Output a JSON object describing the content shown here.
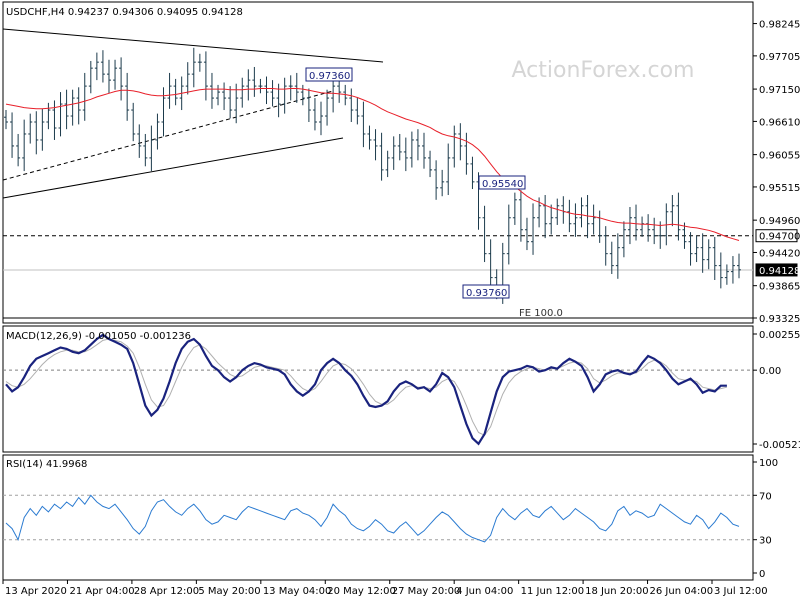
{
  "header": {
    "symbol_ohlc": "USDCHF,H4  0.94237 0.94306 0.94095 0.94128",
    "watermark": "ActionForex.com"
  },
  "chart_data": [
    {
      "type": "line",
      "name": "price",
      "ylim": [
        0.93325,
        0.98505
      ],
      "yticks": [
        "0.98245",
        "0.97705",
        "0.97150",
        "0.96610",
        "0.96055",
        "0.95515",
        "0.94960",
        "0.94420",
        "0.93865",
        "0.93325"
      ],
      "price_labels": [
        "0.94700",
        "0.94128"
      ],
      "annotations": [
        {
          "text": "0.97360",
          "value": 0.9736
        },
        {
          "text": "0.95540",
          "value": 0.9554
        },
        {
          "text": "0.93760",
          "value": 0.9376
        },
        {
          "text": "FE 100.0",
          "value": 0.934
        }
      ],
      "close": [
        0.966,
        0.962,
        0.96,
        0.964,
        0.966,
        0.963,
        0.966,
        0.968,
        0.965,
        0.969,
        0.967,
        0.97,
        0.968,
        0.972,
        0.975,
        0.976,
        0.974,
        0.973,
        0.975,
        0.972,
        0.968,
        0.964,
        0.962,
        0.96,
        0.963,
        0.966,
        0.97,
        0.972,
        0.97,
        0.972,
        0.974,
        0.976,
        0.976,
        0.972,
        0.97,
        0.971,
        0.97,
        0.968,
        0.97,
        0.972,
        0.973,
        0.972,
        0.972,
        0.971,
        0.97,
        0.969,
        0.972,
        0.972,
        0.971,
        0.97,
        0.968,
        0.966,
        0.967,
        0.97,
        0.972,
        0.971,
        0.97,
        0.968,
        0.967,
        0.964,
        0.963,
        0.962,
        0.958,
        0.96,
        0.962,
        0.961,
        0.96,
        0.963,
        0.962,
        0.96,
        0.958,
        0.955,
        0.956,
        0.96,
        0.964,
        0.962,
        0.959,
        0.956,
        0.95,
        0.944,
        0.94,
        0.938,
        0.944,
        0.95,
        0.953,
        0.948,
        0.946,
        0.95,
        0.952,
        0.949,
        0.95,
        0.952,
        0.951,
        0.949,
        0.95,
        0.952,
        0.949,
        0.95,
        0.947,
        0.944,
        0.942,
        0.945,
        0.948,
        0.95,
        0.948,
        0.949,
        0.948,
        0.947,
        0.947,
        0.951,
        0.952,
        0.948,
        0.946,
        0.944,
        0.945,
        0.943,
        0.945,
        0.942,
        0.94,
        0.941,
        0.942,
        0.9413
      ],
      "ma": [
        0.969,
        0.9688,
        0.9686,
        0.9684,
        0.9683,
        0.9682,
        0.9682,
        0.9683,
        0.9684,
        0.9686,
        0.9688,
        0.969,
        0.9692,
        0.9695,
        0.9698,
        0.9702,
        0.9705,
        0.9708,
        0.9711,
        0.9713,
        0.9713,
        0.9712,
        0.971,
        0.9707,
        0.9705,
        0.9704,
        0.9704,
        0.9705,
        0.9706,
        0.9708,
        0.971,
        0.9712,
        0.9714,
        0.9715,
        0.9715,
        0.9715,
        0.9715,
        0.9714,
        0.9714,
        0.9714,
        0.9715,
        0.9715,
        0.9716,
        0.9716,
        0.9716,
        0.9715,
        0.9715,
        0.9716,
        0.9716,
        0.9715,
        0.9713,
        0.9711,
        0.9709,
        0.9708,
        0.9708,
        0.9707,
        0.9706,
        0.9704,
        0.9701,
        0.9697,
        0.9693,
        0.9688,
        0.9682,
        0.9677,
        0.9673,
        0.9669,
        0.9665,
        0.9662,
        0.9659,
        0.9655,
        0.9651,
        0.9645,
        0.964,
        0.9637,
        0.9635,
        0.9632,
        0.9628,
        0.9622,
        0.9614,
        0.9603,
        0.959,
        0.9577,
        0.9566,
        0.9558,
        0.9552,
        0.9544,
        0.9536,
        0.953,
        0.9526,
        0.9521,
        0.9517,
        0.9514,
        0.9511,
        0.9508,
        0.9506,
        0.9505,
        0.9503,
        0.9502,
        0.95,
        0.9497,
        0.9494,
        0.9492,
        0.9491,
        0.9491,
        0.949,
        0.9489,
        0.9489,
        0.9488,
        0.9487,
        0.9488,
        0.9489,
        0.9488,
        0.9486,
        0.9484,
        0.9483,
        0.9481,
        0.9479,
        0.9476,
        0.9472,
        0.9468,
        0.9465,
        0.9462
      ]
    },
    {
      "type": "line",
      "name": "MACD",
      "title": "MACD(12,26,9) -0.001050 -0.001236",
      "ylim": [
        -0.005212,
        0.002553
      ],
      "yticks": [
        "0.002553",
        "0.00",
        "-0.005212"
      ],
      "macd": [
        -0.001,
        -0.0015,
        -0.0012,
        -0.0005,
        0.0003,
        0.0008,
        0.001,
        0.0012,
        0.0014,
        0.0016,
        0.0015,
        0.0013,
        0.0012,
        0.0014,
        0.0018,
        0.0022,
        0.0025,
        0.0022,
        0.002,
        0.0018,
        0.0015,
        0.0005,
        -0.001,
        -0.0025,
        -0.0032,
        -0.0028,
        -0.002,
        -0.0008,
        0.0005,
        0.0015,
        0.002,
        0.0022,
        0.0018,
        0.001,
        0.0003,
        0.0,
        -0.0005,
        -0.0008,
        -0.0005,
        0.0,
        0.0003,
        0.0005,
        0.0004,
        0.0002,
        0.0001,
        0.0,
        -0.0003,
        -0.001,
        -0.0015,
        -0.0018,
        -0.0015,
        -0.001,
        0.0,
        0.0005,
        0.0008,
        0.0005,
        0.0,
        -0.0004,
        -0.001,
        -0.0018,
        -0.0025,
        -0.0026,
        -0.0025,
        -0.0022,
        -0.0015,
        -0.001,
        -0.0008,
        -0.001,
        -0.0013,
        -0.0012,
        -0.0015,
        -0.001,
        -0.0002,
        -0.0005,
        -0.0012,
        -0.0025,
        -0.0038,
        -0.0048,
        -0.0052,
        -0.0045,
        -0.003,
        -0.0015,
        -0.0005,
        -0.0001,
        0.0,
        0.0001,
        0.0003,
        0.0002,
        -0.0001,
        0.0,
        0.0002,
        0.0001,
        0.0005,
        0.0008,
        0.0006,
        0.0003,
        -0.0005,
        -0.0015,
        -0.001,
        -0.0003,
        -0.0001,
        0.0,
        -0.0002,
        -0.0003,
        -0.0001,
        0.0005,
        0.001,
        0.0008,
        0.0005,
        0.0,
        -0.0006,
        -0.001,
        -0.0008,
        -0.0006,
        -0.001,
        -0.0016,
        -0.0014,
        -0.0015,
        -0.0011,
        -0.0011
      ],
      "signal": [
        -0.0008,
        -0.0011,
        -0.0012,
        -0.001,
        -0.0006,
        -0.0001,
        0.0004,
        0.0008,
        0.0011,
        0.0013,
        0.0014,
        0.0014,
        0.0013,
        0.0013,
        0.0015,
        0.0018,
        0.0021,
        0.0022,
        0.0021,
        0.002,
        0.0017,
        0.0012,
        0.0002,
        -0.001,
        -0.0021,
        -0.0026,
        -0.0025,
        -0.0018,
        -0.0008,
        0.0002,
        0.001,
        0.0016,
        0.0018,
        0.0015,
        0.001,
        0.0005,
        0.0001,
        -0.0003,
        -0.0005,
        -0.0004,
        -0.0001,
        0.0002,
        0.0003,
        0.0003,
        0.0002,
        0.0001,
        0.0,
        -0.0004,
        -0.0009,
        -0.0013,
        -0.0015,
        -0.0013,
        -0.0008,
        -0.0002,
        0.0003,
        0.0005,
        0.0004,
        0.0001,
        -0.0004,
        -0.001,
        -0.0017,
        -0.0022,
        -0.0024,
        -0.0024,
        -0.0021,
        -0.0016,
        -0.0012,
        -0.0011,
        -0.0012,
        -0.0012,
        -0.0013,
        -0.0012,
        -0.0008,
        -0.0006,
        -0.0008,
        -0.0015,
        -0.0025,
        -0.0036,
        -0.0044,
        -0.0046,
        -0.004,
        -0.0028,
        -0.0017,
        -0.0009,
        -0.0004,
        -0.0001,
        0.0001,
        0.0002,
        0.0001,
        0.0,
        0.0001,
        0.0001,
        0.0003,
        0.0005,
        0.0006,
        0.0005,
        0.0001,
        -0.0006,
        -0.0009,
        -0.0007,
        -0.0004,
        -0.0002,
        -0.0002,
        -0.0002,
        -0.0002,
        0.0001,
        0.0005,
        0.0007,
        0.0006,
        0.0003,
        -0.0002,
        -0.0006,
        -0.0007,
        -0.0007,
        -0.0008,
        -0.0012,
        -0.0013,
        -0.0014,
        -0.0013,
        -0.0012
      ]
    },
    {
      "type": "line",
      "name": "RSI",
      "title": "RSI(14) 41.9968",
      "ylim": [
        0,
        100
      ],
      "yticks": [
        "100",
        "70",
        "30",
        "0"
      ],
      "levels": [
        70,
        30
      ],
      "rsi": [
        45,
        40,
        30,
        50,
        58,
        52,
        60,
        55,
        62,
        58,
        64,
        60,
        68,
        62,
        70,
        64,
        60,
        58,
        62,
        55,
        48,
        40,
        35,
        42,
        56,
        64,
        66,
        60,
        55,
        52,
        58,
        62,
        56,
        48,
        44,
        46,
        52,
        50,
        48,
        55,
        60,
        58,
        56,
        54,
        52,
        50,
        48,
        56,
        58,
        54,
        52,
        48,
        42,
        50,
        62,
        56,
        52,
        44,
        40,
        38,
        42,
        48,
        44,
        38,
        36,
        42,
        46,
        40,
        34,
        38,
        44,
        50,
        55,
        52,
        46,
        40,
        35,
        32,
        30,
        28,
        34,
        50,
        58,
        52,
        48,
        54,
        58,
        52,
        50,
        56,
        60,
        54,
        48,
        52,
        58,
        54,
        50,
        46,
        40,
        38,
        44,
        56,
        60,
        52,
        56,
        54,
        50,
        52,
        62,
        58,
        54,
        50,
        46,
        44,
        52,
        48,
        40,
        46,
        54,
        50,
        44,
        42
      ]
    },
    {
      "type": "table",
      "name": "time-axis",
      "xticks": [
        "13 Apr 2020",
        "21 Apr 04:00",
        "28 Apr 12:00",
        "5 May 20:00",
        "13 May 04:00",
        "20 May 12:00",
        "27 May 20:00",
        "4 Jun 04:00",
        "11 Jun 12:00",
        "18 Jun 20:00",
        "26 Jun 04:00",
        "3 Jul 12:00"
      ]
    }
  ]
}
